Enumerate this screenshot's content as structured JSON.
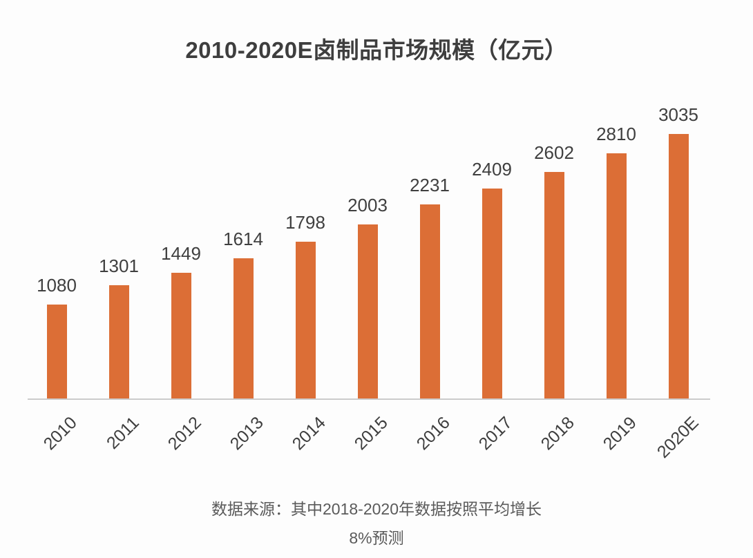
{
  "title": "2010-2020E卤制品市场规模（亿元）",
  "footer": {
    "line1": "数据来源：其中2018-2020年数据按照平均增长",
    "line2": "8%预测"
  },
  "colors": {
    "bar": "#dc6e36",
    "title_text": "#3e3e3e",
    "value_text": "#3f3f3f",
    "tick_text": "#3e3e3e",
    "footer_text": "#5a5a5a",
    "axis_line": "#cbcbcb",
    "background": "#fdfdfd"
  },
  "chart_data": {
    "type": "bar",
    "title": "2010-2020E卤制品市场规模（亿元）",
    "categories": [
      "2010",
      "2011",
      "2012",
      "2013",
      "2014",
      "2015",
      "2016",
      "2017",
      "2018",
      "2019",
      "2020E"
    ],
    "values": [
      1080,
      1301,
      1449,
      1614,
      1798,
      2003,
      2231,
      2409,
      2602,
      2810,
      3035
    ],
    "xlabel": "",
    "ylabel": "",
    "ylim": [
      0,
      3380
    ],
    "grid": false,
    "legend": "none",
    "bar_color": "#dc6e36",
    "value_labels_shown": true,
    "x_tick_rotation_deg": 45,
    "annotation": "数据来源：其中2018-2020年数据按照平均增长 8%预测"
  }
}
